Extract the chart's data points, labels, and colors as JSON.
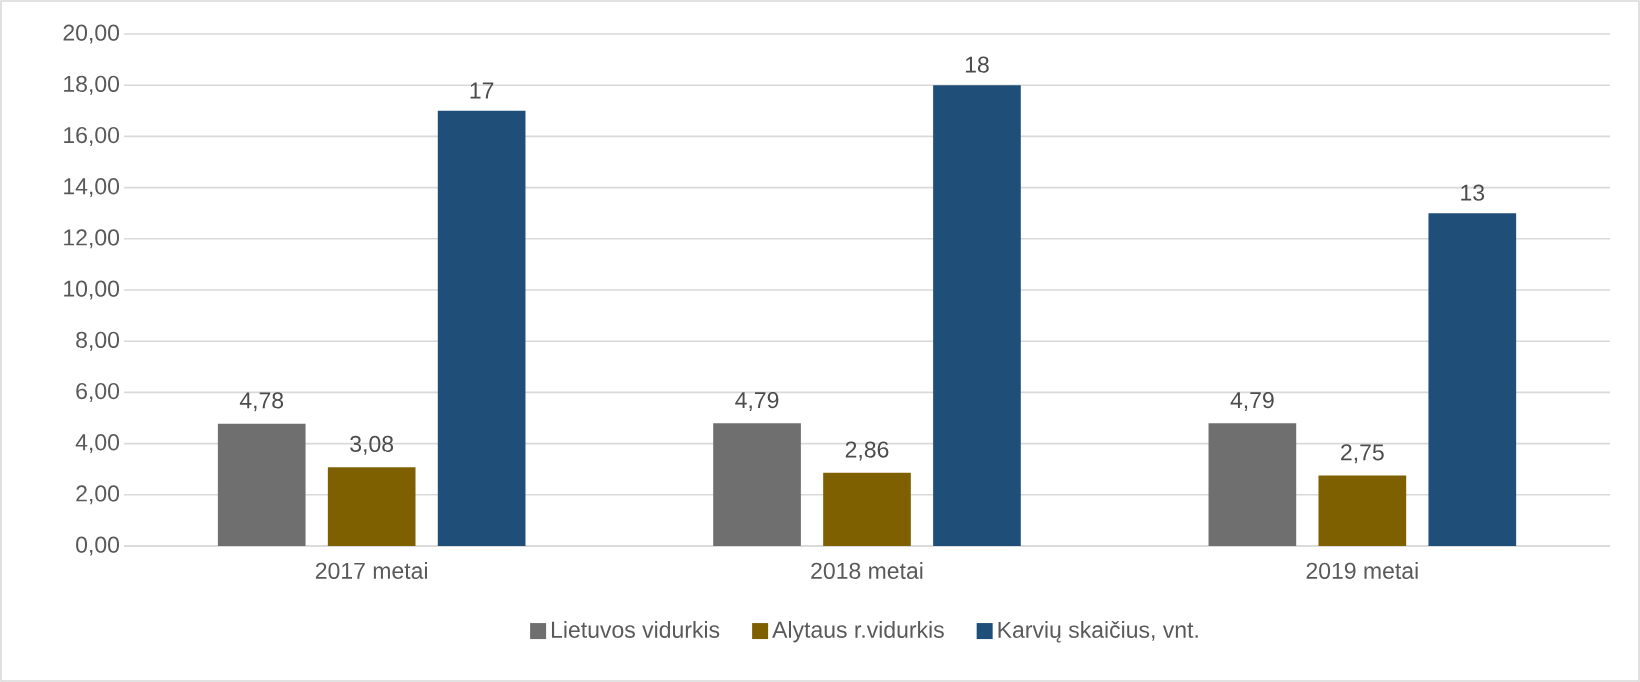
{
  "chart_data": {
    "type": "bar",
    "categories": [
      "2017 metai",
      "2018 metai",
      "2019 metai"
    ],
    "series": [
      {
        "name": "Lietuvos vidurkis",
        "color": "#6f6f6f",
        "values": [
          4.78,
          4.79,
          4.79
        ],
        "value_labels": [
          "4,78",
          "4,79",
          "4,79"
        ]
      },
      {
        "name": "Alytaus r.vidurkis",
        "color": "#7f6000",
        "values": [
          3.08,
          2.86,
          2.75
        ],
        "value_labels": [
          "3,08",
          "2,86",
          "2,75"
        ]
      },
      {
        "name": "Karvių skaičius, vnt.",
        "color": "#1f4e79",
        "values": [
          17,
          18,
          13
        ],
        "value_labels": [
          "17",
          "18",
          "13"
        ]
      }
    ],
    "ylim": [
      0,
      20
    ],
    "yticks": [
      {
        "value": 0,
        "label": "0,00"
      },
      {
        "value": 2,
        "label": "2,00"
      },
      {
        "value": 4,
        "label": "4,00"
      },
      {
        "value": 6,
        "label": "6,00"
      },
      {
        "value": 8,
        "label": "8,00"
      },
      {
        "value": 10,
        "label": "10,00"
      },
      {
        "value": 12,
        "label": "12,00"
      },
      {
        "value": 14,
        "label": "14,00"
      },
      {
        "value": 16,
        "label": "16,00"
      },
      {
        "value": 18,
        "label": "18,00"
      },
      {
        "value": 20,
        "label": "20,00"
      }
    ],
    "grid": "y",
    "legend": "bottom"
  }
}
